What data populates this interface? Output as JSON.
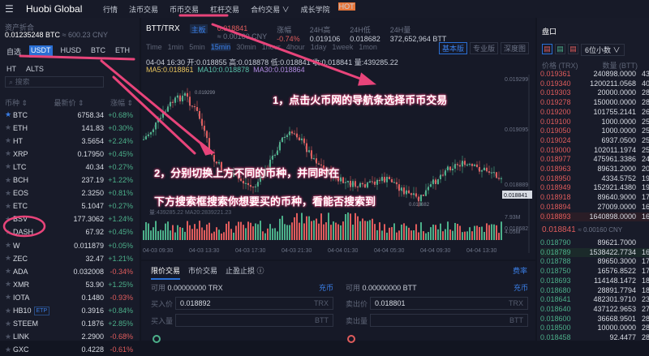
{
  "nav": {
    "logo": "Huobi Global",
    "items": [
      "行情",
      "法币交易",
      "币币交易",
      "杠杆交易",
      "合约交易 ∨",
      "成长学院"
    ],
    "hot": "HOT"
  },
  "left": {
    "asset_label": "资产折合",
    "asset_btc": "0.01235248 BTC",
    "asset_cny": "≈ 600.23 CNY",
    "tabs": [
      "自选",
      "USDT",
      "HUSD",
      "BTC",
      "ETH",
      "HT",
      "ALTS"
    ],
    "search_placeholder": "搜索",
    "headers": [
      "币种 ⇕",
      "最新价 ⇕",
      "涨幅 ⇕"
    ],
    "coins": [
      {
        "s": "BTC",
        "p": "6758.34",
        "c": "+0.68%",
        "fav": true
      },
      {
        "s": "ETH",
        "p": "141.83",
        "c": "+0.30%"
      },
      {
        "s": "HT",
        "p": "3.5654",
        "c": "+2.24%"
      },
      {
        "s": "XRP",
        "p": "0.17950",
        "c": "+0.45%"
      },
      {
        "s": "LTC",
        "p": "40.34",
        "c": "+0.27%"
      },
      {
        "s": "BCH",
        "p": "237.19",
        "c": "+1.22%"
      },
      {
        "s": "EOS",
        "p": "2.3250",
        "c": "+0.81%"
      },
      {
        "s": "ETC",
        "p": "5.1047",
        "c": "+0.27%"
      },
      {
        "s": "BSV",
        "p": "177.3062",
        "c": "+1.24%"
      },
      {
        "s": "DASH",
        "p": "67.92",
        "c": "+0.45%"
      },
      {
        "s": "W",
        "p": "0.011879",
        "c": "+0.05%"
      },
      {
        "s": "ZEC",
        "p": "32.47",
        "c": "+1.21%"
      },
      {
        "s": "ADA",
        "p": "0.032008",
        "c": "-0.34%"
      },
      {
        "s": "XMR",
        "p": "53.90",
        "c": "+1.25%"
      },
      {
        "s": "IOTA",
        "p": "0.1480",
        "c": "-0.93%"
      },
      {
        "s": "HB10",
        "p": "0.3916",
        "c": "+0.84%",
        "tag": "ETP"
      },
      {
        "s": "STEEM",
        "p": "0.1876",
        "c": "+2.85%"
      },
      {
        "s": "LINK",
        "p": "2.2900",
        "c": "-0.68%"
      },
      {
        "s": "GXC",
        "p": "0.4228",
        "c": "-0.61%"
      }
    ]
  },
  "ticker": {
    "pair": "BTT/TRX",
    "board": "主板",
    "price": "0.018841",
    "price_cny": "≈ 0.00160 CNY",
    "change_label": "涨幅",
    "change": "-0.74%",
    "high_label": "24H高",
    "high": "0.019106",
    "low_label": "24H低",
    "low": "0.018682",
    "vol_label": "24H量",
    "vol": "372,652,964 BTT"
  },
  "chart": {
    "intervals": [
      "Time",
      "1min",
      "5min",
      "15min",
      "30min",
      "1hour",
      "4hour",
      "1day",
      "1week",
      "1mon"
    ],
    "active_interval": "15min",
    "views": [
      "基本版",
      "专业版",
      "深度图"
    ],
    "ohlc": "04-04 16:30  开:0.018855 高:0.018878 低:0.018841 收:0.018841 量:439285.22",
    "ma5": "MA5:0.018861",
    "ma10": "MA10:0.018878",
    "ma30": "MA30:0.018864",
    "y_ticks": [
      "0.019299",
      "0.019095",
      "0.018889",
      "0.018682"
    ],
    "current": "0.018841",
    "high_mark": "0.019299",
    "low_mark": "0.018682",
    "vol_ticks": [
      "7.93M",
      "4.05M"
    ],
    "vol_label": "量:439285.22  MA20:2839221.23",
    "x_ticks": [
      "04-03 09:30",
      "04-03 13:30",
      "04-03 17:30",
      "04-03 21:30",
      "04-04 01:30",
      "04-04 05:30",
      "04-04 09:30",
      "04-04 13:30"
    ]
  },
  "annotations": [
    "1，点击火币网的导航条选择币币交易",
    "2，分别切换上方不同的币种，并同时在",
    "下方搜索框搜索你想要买的币种，看能否搜索到"
  ],
  "trade": {
    "tabs": [
      "限价交易",
      "市价交易",
      "止盈止损 ⓘ"
    ],
    "fee": "费率",
    "buy": {
      "avail_label": "可用",
      "avail": "0.00000000  TRX",
      "deposit": "充币",
      "price_label": "买入价",
      "price": "0.018892",
      "price_unit": "TRX",
      "qty_label": "买入量",
      "qty_unit": "BTT"
    },
    "sell": {
      "avail_label": "可用",
      "avail": "0.00000000  BTT",
      "deposit": "充币",
      "price_label": "卖出价",
      "price": "0.018801",
      "price_unit": "TRX",
      "qty_label": "卖出量",
      "qty_unit": "BTT"
    }
  },
  "book": {
    "title": "盘口",
    "decimals": "6位小数 ∨",
    "headers": [
      "价格 (TRX)",
      "数量 (BTT)"
    ],
    "asks": [
      [
        "0.019361",
        "240898.0000",
        "43"
      ],
      [
        "0.019340",
        "1200211.0568",
        "40"
      ],
      [
        "0.019303",
        "20000.0000",
        "28"
      ],
      [
        "0.019278",
        "150000.0000",
        "28"
      ],
      [
        "0.019200",
        "101755.2141",
        "26"
      ],
      [
        "0.019100",
        "1000.0000",
        "25"
      ],
      [
        "0.019050",
        "1000.0000",
        "25"
      ],
      [
        "0.019024",
        "6937.0500",
        "25"
      ],
      [
        "0.019000",
        "102011.1974",
        "25"
      ],
      [
        "0.018977",
        "475961.3386",
        "24"
      ],
      [
        "0.018963",
        "89631.2000",
        "20"
      ],
      [
        "0.018950",
        "4334.5752",
        "19"
      ],
      [
        "0.018949",
        "152921.4380",
        "19"
      ],
      [
        "0.018918",
        "89640.9000",
        "17"
      ],
      [
        "0.018894",
        "27009.0000",
        "16"
      ],
      [
        "0.018893",
        "1640898.0000",
        "16"
      ]
    ],
    "mid": "0.018841",
    "mid_cny": "≈ 0.00160 CNY",
    "bids": [
      [
        "0.018790",
        "89621.7000",
        ""
      ],
      [
        "0.018789",
        "1538422.7734",
        "16"
      ],
      [
        "0.018788",
        "89650.3000",
        "17"
      ],
      [
        "0.018750",
        "16576.8522",
        "17"
      ],
      [
        "0.018693",
        "114148.1472",
        "18"
      ],
      [
        "0.018680",
        "28891.7794",
        "18"
      ],
      [
        "0.018641",
        "482301.9710",
        "23"
      ],
      [
        "0.018640",
        "437122.9653",
        "27"
      ],
      [
        "0.018600",
        "36668.9501",
        "28"
      ],
      [
        "0.018500",
        "10000.0000",
        "28"
      ],
      [
        "0.018458",
        "92.4477",
        "28"
      ]
    ]
  },
  "colors": {
    "up": "#4cb08a",
    "down": "#e05c5c",
    "accent": "#2a6fd4",
    "annotation": "#e8447a"
  }
}
